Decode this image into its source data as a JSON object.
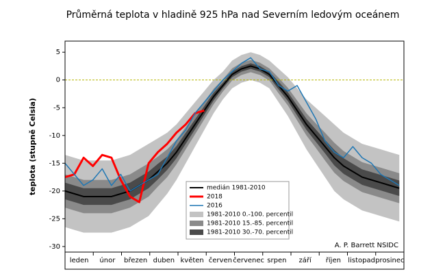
{
  "chart_data": {
    "type": "line",
    "title": "Průměrná teplota v hladině 925 hPa nad Severním ledovým oceánem",
    "ylabel": "teplota (stupně Celsia)",
    "annotation": "A. P. Barrett NSIDC",
    "categories": [
      "leden",
      "únor",
      "březen",
      "duben",
      "květen",
      "červen",
      "červenec",
      "srpen",
      "září",
      "říjen",
      "listopad",
      "prosinec"
    ],
    "x": [
      0,
      10,
      20,
      30,
      40,
      50,
      60,
      70,
      80,
      90,
      100,
      110,
      120,
      130,
      140,
      150,
      160,
      170,
      180,
      190,
      200,
      210,
      220,
      230,
      240,
      250,
      260,
      270,
      280,
      290,
      300,
      310,
      320,
      330,
      340,
      350,
      360
    ],
    "xlim": [
      0,
      365
    ],
    "ylim": [
      -31,
      7
    ],
    "yticks": [
      5,
      0,
      -5,
      -10,
      -15,
      -20,
      -25,
      -30
    ],
    "zero_line": 0,
    "bands": [
      {
        "name": "1981-2010 0.-100. percentil",
        "color": "#c3c3c3",
        "low": [
          -26.5,
          -27,
          -27.5,
          -27.5,
          -27.5,
          -27.5,
          -27,
          -26.5,
          -25.5,
          -24.5,
          -22.5,
          -20.5,
          -18,
          -15,
          -12,
          -9,
          -6,
          -3.5,
          -1.5,
          -0.5,
          0,
          -0.5,
          -1.5,
          -4,
          -6.5,
          -9.5,
          -12.5,
          -15,
          -17.5,
          -20,
          -21.5,
          -22.5,
          -23.5,
          -24,
          -24.5,
          -25,
          -25.5
        ],
        "high": [
          -13.5,
          -14,
          -14.5,
          -14.5,
          -14.5,
          -14.5,
          -14,
          -13.5,
          -12.5,
          -11.5,
          -10.5,
          -9.5,
          -8,
          -6,
          -4,
          -2,
          0,
          1.5,
          3.5,
          4.5,
          5,
          4.5,
          3.5,
          2,
          0.5,
          -1.5,
          -3.5,
          -5,
          -6.5,
          -8,
          -9.5,
          -10.5,
          -11.5,
          -12,
          -12.5,
          -13,
          -13.5
        ]
      },
      {
        "name": "1981-2010 15.-85. percentil",
        "color": "#8a8a8a",
        "low": [
          -23,
          -23.5,
          -24,
          -24,
          -24,
          -24,
          -23.5,
          -23,
          -22,
          -21,
          -19.2,
          -17.5,
          -15.2,
          -12.5,
          -9.8,
          -7.1,
          -4.4,
          -2.1,
          -0.1,
          0.9,
          1.4,
          0.9,
          -0.1,
          -2.4,
          -4.6,
          -7.3,
          -10,
          -12.2,
          -14.5,
          -16.7,
          -18.2,
          -19.2,
          -20.2,
          -20.7,
          -21.2,
          -21.7,
          -22.2
        ],
        "high": [
          -17,
          -17.5,
          -18,
          -18,
          -18,
          -18,
          -17.5,
          -17,
          -16,
          -15,
          -13.8,
          -12.5,
          -10.8,
          -8.5,
          -6.2,
          -3.9,
          -1.6,
          0.1,
          2.1,
          3.1,
          3.6,
          3.1,
          2.1,
          0.4,
          -1.4,
          -3.7,
          -6,
          -7.8,
          -9.5,
          -11.3,
          -12.8,
          -13.8,
          -14.8,
          -15.3,
          -15.8,
          -16.3,
          -16.8
        ]
      },
      {
        "name": "1981-2010 30.-70. percentil",
        "color": "#4a4a4a",
        "low": [
          -21.5,
          -22,
          -22.5,
          -22.5,
          -22.5,
          -22.5,
          -22,
          -21.5,
          -20.5,
          -19.5,
          -17.9,
          -16.2,
          -14.1,
          -11.5,
          -8.9,
          -6.3,
          -3.7,
          -1.5,
          0.5,
          1.5,
          2,
          1.5,
          0.5,
          -1.7,
          -3.8,
          -6.4,
          -9,
          -11.1,
          -13.2,
          -15.4,
          -16.9,
          -17.9,
          -18.9,
          -19.4,
          -19.9,
          -20.4,
          -20.9
        ],
        "high": [
          -18.5,
          -19,
          -19.5,
          -19.5,
          -19.5,
          -19.5,
          -19,
          -18.5,
          -17.5,
          -16.5,
          -15.1,
          -13.8,
          -11.9,
          -9.5,
          -7.1,
          -4.7,
          -2.3,
          -0.5,
          1.5,
          2.5,
          3,
          2.5,
          1.5,
          -0.3,
          -2.2,
          -4.6,
          -7,
          -8.9,
          -10.8,
          -12.6,
          -14.1,
          -15.1,
          -16.1,
          -16.6,
          -17.1,
          -17.6,
          -18.1
        ]
      }
    ],
    "series": [
      {
        "name": "medián 1981-2010",
        "color": "#000000",
        "width": 2,
        "values": [
          -20,
          -20.5,
          -21,
          -21,
          -21,
          -21,
          -20.5,
          -20,
          -19,
          -18,
          -16.5,
          -15,
          -13,
          -10.5,
          -8,
          -5.5,
          -3,
          -1,
          1,
          2,
          2.5,
          2,
          1,
          -1,
          -3,
          -5.5,
          -8,
          -10,
          -12,
          -14,
          -15.5,
          -16.5,
          -17.5,
          -18,
          -18.5,
          -19,
          -19.5
        ]
      },
      {
        "name": "2018",
        "color": "#ff0000",
        "width": 3,
        "values": [
          -17.5,
          -17,
          -14,
          -15.5,
          -13.5,
          -14,
          -18,
          -21,
          -22,
          -15,
          -13,
          -11.5,
          -9.5,
          -8,
          -6,
          -5.5,
          null,
          null,
          null,
          null,
          null,
          null,
          null,
          null,
          null,
          null,
          null,
          null,
          null,
          null,
          null,
          null,
          null,
          null,
          null,
          null,
          null
        ]
      },
      {
        "name": "2016",
        "color": "#1f77b4",
        "width": 1.5,
        "values": [
          -15,
          -17,
          -19,
          -18,
          -16,
          -19,
          -17,
          -20,
          -19,
          -18,
          -17,
          -14,
          -11,
          -9,
          -6,
          -4,
          -2,
          0,
          1.5,
          3,
          4,
          2,
          1.5,
          -1,
          -2,
          -1,
          -4,
          -7,
          -11,
          -13,
          -14,
          -12,
          -14,
          -15,
          -17,
          -18,
          -19
        ]
      }
    ]
  }
}
